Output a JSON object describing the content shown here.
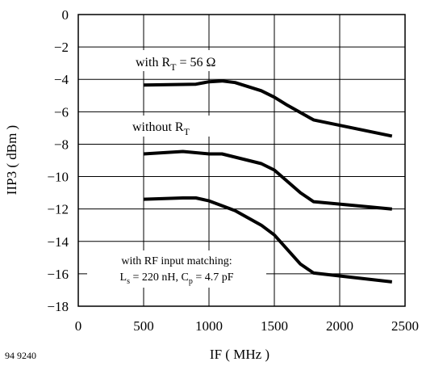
{
  "chart_data": {
    "type": "line",
    "xlabel": "IF ( MHz )",
    "ylabel": "IIP3 ( dBm )",
    "xlim": [
      0,
      2500
    ],
    "ylim": [
      -18,
      0
    ],
    "xticks": [
      0,
      500,
      1000,
      1500,
      2000,
      2500
    ],
    "yticks": [
      0,
      -2,
      -4,
      -6,
      -8,
      -10,
      -12,
      -14,
      -16,
      -18
    ],
    "xtick_labels": [
      "0",
      "500",
      "1000",
      "1500",
      "2000",
      "2500"
    ],
    "ytick_labels": [
      "0",
      "−2",
      "−4",
      "−6",
      "−8",
      "−10",
      "−12",
      "−14",
      "−16",
      "−18"
    ],
    "grid": true,
    "series": [
      {
        "x": [
          500,
          900,
          1000,
          1100,
          1200,
          1400,
          1500,
          1600,
          1800,
          2400
        ],
        "y": [
          -4.35,
          -4.3,
          -4.15,
          -4.1,
          -4.2,
          -4.7,
          -5.1,
          -5.6,
          -6.5,
          -7.5
        ]
      },
      {
        "x": [
          500,
          800,
          1000,
          1100,
          1400,
          1500,
          1700,
          1800,
          2400
        ],
        "y": [
          -8.6,
          -8.45,
          -8.6,
          -8.6,
          -9.2,
          -9.6,
          -11.0,
          -11.55,
          -12.0
        ]
      },
      {
        "x": [
          500,
          800,
          900,
          1000,
          1200,
          1400,
          1500,
          1700,
          1800,
          2400
        ],
        "y": [
          -11.4,
          -11.32,
          -11.32,
          -11.5,
          -12.1,
          -13.0,
          -13.6,
          -15.4,
          -15.95,
          -16.5
        ]
      }
    ],
    "annotations": {
      "rt56_prefix": "with R",
      "rt56_sub": "T",
      "rt56_suffix": " = 56 Ω",
      "without_prefix": "without R",
      "without_sub": "T",
      "matching_line1": "with RF input matching:",
      "matching_line2_a": "L",
      "matching_line2_a_sub": "s",
      "matching_line2_b": " = 220 nH, C",
      "matching_line2_b_sub": "p",
      "matching_line2_c": " = 4.7 pF"
    },
    "figure_ref": "94 9240"
  }
}
